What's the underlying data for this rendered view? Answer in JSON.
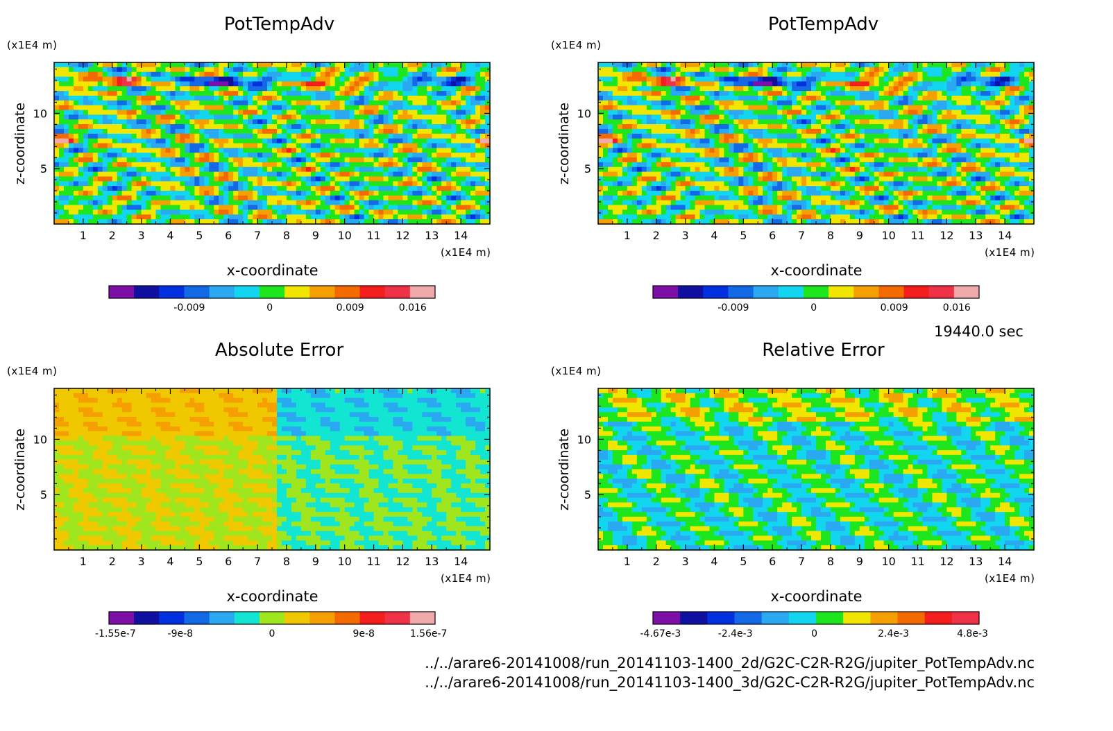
{
  "chart_data": [
    {
      "type": "heatmap",
      "title": "PotTempAdv",
      "xlabel": "x-coordinate",
      "ylabel": "z-coordinate",
      "x_unit": "(x1E4 m)",
      "y_unit": "(x1E4 m)",
      "x_ticks": [
        "1",
        "2",
        "3",
        "4",
        "5",
        "6",
        "7",
        "8",
        "9",
        "10",
        "11",
        "12",
        "13",
        "14"
      ],
      "y_ticks": [
        "5",
        "10"
      ],
      "xlim": [
        0,
        15
      ],
      "ylim": [
        0,
        14.6
      ],
      "colorbar": {
        "tick_labels": [
          "-0.009",
          "0",
          "0.009",
          "0.016"
        ],
        "tick_values": [
          -0.009,
          0,
          0.009,
          0.016
        ],
        "range": [
          -0.018,
          0.0185
        ],
        "colors": [
          "#7d0fa8",
          "#1010a0",
          "#0030e0",
          "#1469e6",
          "#2aa8f2",
          "#12d6f0",
          "#1ee61e",
          "#f0e600",
          "#f5a000",
          "#f56a00",
          "#f51e1e",
          "#f03246",
          "#f0aaaa"
        ]
      }
    },
    {
      "type": "heatmap",
      "title": "PotTempAdv",
      "xlabel": "x-coordinate",
      "ylabel": "z-coordinate",
      "x_unit": "(x1E4 m)",
      "y_unit": "(x1E4 m)",
      "x_ticks": [
        "1",
        "2",
        "3",
        "4",
        "5",
        "6",
        "7",
        "8",
        "9",
        "10",
        "11",
        "12",
        "13",
        "14"
      ],
      "y_ticks": [
        "5",
        "10"
      ],
      "xlim": [
        0,
        15
      ],
      "ylim": [
        0,
        14.6
      ],
      "colorbar": {
        "tick_labels": [
          "-0.009",
          "0",
          "0.009",
          "0.016"
        ],
        "tick_values": [
          -0.009,
          0,
          0.009,
          0.016
        ],
        "range": [
          -0.018,
          0.0185
        ],
        "colors": [
          "#7d0fa8",
          "#1010a0",
          "#0030e0",
          "#1469e6",
          "#2aa8f2",
          "#12d6f0",
          "#1ee61e",
          "#f0e600",
          "#f5a000",
          "#f56a00",
          "#f51e1e",
          "#f03246",
          "#f0aaaa"
        ]
      }
    },
    {
      "type": "heatmap",
      "title": "Absolute Error",
      "xlabel": "x-coordinate",
      "ylabel": "z-coordinate",
      "x_unit": "(x1E4 m)",
      "y_unit": "(x1E4 m)",
      "x_ticks": [
        "1",
        "2",
        "3",
        "4",
        "5",
        "6",
        "7",
        "8",
        "9",
        "10",
        "11",
        "12",
        "13",
        "14"
      ],
      "y_ticks": [
        "5",
        "10"
      ],
      "xlim": [
        0,
        15
      ],
      "ylim": [
        0,
        14.6
      ],
      "colorbar": {
        "tick_labels": [
          "-1.55e-7",
          "-9e-8",
          "0",
          "9e-8",
          "1.56e-7"
        ],
        "tick_values": [
          -1.55e-07,
          -9e-08,
          0,
          9e-08,
          1.56e-07
        ],
        "range": [
          -1.6e-07,
          1.6e-07
        ],
        "colors": [
          "#7d0fa8",
          "#1010a0",
          "#0030e0",
          "#1469e6",
          "#2aa8f2",
          "#12e6d2",
          "#a0e61e",
          "#f0c800",
          "#f5a000",
          "#f56a00",
          "#f51e1e",
          "#f03246",
          "#f0aaaa"
        ]
      }
    },
    {
      "type": "heatmap",
      "title": "Relative Error",
      "xlabel": "x-coordinate",
      "ylabel": "z-coordinate",
      "x_unit": "(x1E4 m)",
      "y_unit": "(x1E4 m)",
      "x_ticks": [
        "1",
        "2",
        "3",
        "4",
        "5",
        "6",
        "7",
        "8",
        "9",
        "10",
        "11",
        "12",
        "13",
        "14"
      ],
      "y_ticks": [
        "5",
        "10"
      ],
      "xlim": [
        0,
        15
      ],
      "ylim": [
        0,
        14.6
      ],
      "colorbar": {
        "tick_labels": [
          "-4.67e-3",
          "-2.4e-3",
          "0",
          "2.4e-3",
          "4.8e-3"
        ],
        "tick_values": [
          -0.00467,
          -0.0024,
          0,
          0.0024,
          0.0048
        ],
        "range": [
          -0.0049,
          0.005
        ],
        "colors": [
          "#7d0fa8",
          "#1010a0",
          "#0030e0",
          "#1469e6",
          "#2aa8f2",
          "#12d6f0",
          "#1ee61e",
          "#f0e600",
          "#f5a000",
          "#f56a00",
          "#f51e1e",
          "#f03246"
        ]
      }
    }
  ],
  "footer": {
    "time": "19440.0 sec",
    "file1": "../../arare6-20141008/run_20141103-1400_2d/G2C-C2R-R2G/jupiter_PotTempAdv.nc",
    "file2": "../../arare6-20141008/run_20141103-1400_3d/G2C-C2R-R2G/jupiter_PotTempAdv.nc"
  }
}
